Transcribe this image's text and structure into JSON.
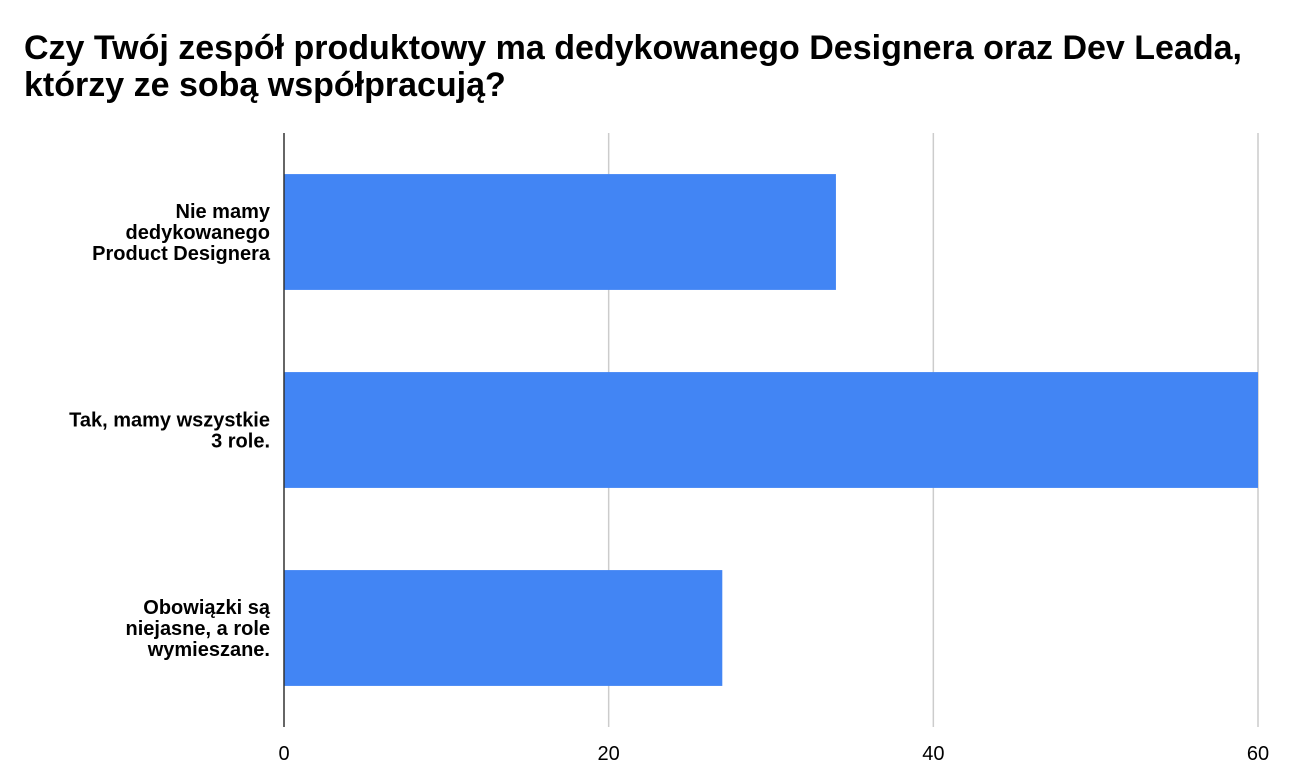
{
  "chart_data": {
    "type": "bar",
    "orientation": "horizontal",
    "title": "Czy Twój zespół produktowy ma dedykowanego Designera oraz Dev Leada, którzy ze sobą współpracują?",
    "categories": [
      "Nie mamy dedykowanego Product Designera",
      "Tak, mamy wszystkie 3 role.",
      "Obowiązki są niejasne, a role wymieszane."
    ],
    "category_label_lines": [
      [
        "Nie mamy",
        "dedykowanego",
        "Product Designera"
      ],
      [
        "Tak, mamy wszystkie",
        "3 role."
      ],
      [
        "Obowiązki są",
        "niejasne, a role",
        "wymieszane."
      ]
    ],
    "values": [
      34,
      60,
      27
    ],
    "xlim": [
      0,
      60
    ],
    "xticks": [
      0,
      20,
      40,
      60
    ],
    "xtick_labels": [
      "0",
      "20",
      "40",
      "60"
    ],
    "xlabel": "",
    "ylabel": "",
    "grid": true,
    "legend": "none",
    "colors": {
      "bar": "#4285F4",
      "grid": "#cccccc",
      "axis": "#333333",
      "text": "#000000"
    }
  }
}
